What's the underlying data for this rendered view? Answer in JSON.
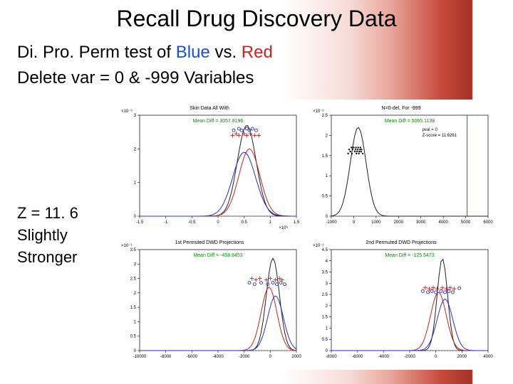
{
  "title": "Recall Drug Discovery Data",
  "subtitle_prefix": "Di. Pro. Perm test of ",
  "subtitle_blue": "Blue",
  "subtitle_vs": " vs. ",
  "subtitle_red": "Red",
  "subtitle2": "Delete var = 0  &  -999 Variables",
  "left_line1": "Z = 11. 6",
  "left_line2": "Slightly",
  "left_line3": "Stronger",
  "charts": {
    "tl": {
      "title": "Skin Data All With",
      "yexp": "×10⁻⁶",
      "xexp": "×10⁶",
      "meanlabel": "Mean Diff = 3057.8196",
      "xlim": [
        -1.5,
        1.5
      ],
      "xticks": [
        "-1.5",
        "-1",
        "-0.5",
        "0",
        "0.5",
        "1",
        "1.5"
      ],
      "ylim": [
        0,
        3
      ],
      "yticks": [
        "0",
        "1",
        "2",
        "3"
      ],
      "kdes": [
        {
          "color": "#202020",
          "mu": 0.55,
          "sigma": 0.18,
          "height": 2.7
        },
        {
          "color": "#cc2020",
          "mu": 0.6,
          "sigma": 0.2,
          "height": 2.0
        },
        {
          "color": "#2030cc",
          "mu": 0.5,
          "sigma": 0.22,
          "height": 1.9
        }
      ],
      "scatter": [
        {
          "color": "#2030cc",
          "marker": "o",
          "pts": [
            [
              0.4,
              2.6
            ],
            [
              0.55,
              2.6
            ],
            [
              0.66,
              2.6
            ],
            [
              0.3,
              2.55
            ],
            [
              0.45,
              2.55
            ],
            [
              0.6,
              2.55
            ],
            [
              0.73,
              2.55
            ]
          ]
        },
        {
          "color": "#cc2020",
          "marker": "+",
          "pts": [
            [
              0.35,
              2.45
            ],
            [
              0.5,
              2.45
            ],
            [
              0.62,
              2.45
            ],
            [
              0.28,
              2.4
            ],
            [
              0.4,
              2.4
            ],
            [
              0.55,
              2.4
            ],
            [
              0.7,
              2.4
            ],
            [
              0.78,
              2.4
            ]
          ]
        }
      ]
    },
    "tr": {
      "title": "N=0-del, For -999",
      "yexp": "×10⁻³",
      "meanlabel": "Mean Diff = 5065.1138",
      "stats": [
        "pval = 0",
        "Z-score = 11.6261"
      ],
      "xlim": [
        -1000,
        6000
      ],
      "xticks": [
        "-1000",
        "0",
        "1000",
        "2000",
        "3000",
        "4000",
        "5000",
        "6000"
      ],
      "ylim": [
        0,
        2.5
      ],
      "yticks": [
        "0",
        "0.5",
        "1",
        "1.5",
        "2",
        "2.5"
      ],
      "kdes": [
        {
          "color": "#202020",
          "mu": 200,
          "sigma": 350,
          "height": 2.2
        }
      ],
      "greenline_x": 5065,
      "scatter": [
        {
          "color": "#101010",
          "marker": "dot",
          "pts": [
            [
              -100,
              1.7
            ],
            [
              0,
              1.7
            ],
            [
              100,
              1.7
            ],
            [
              200,
              1.7
            ],
            [
              300,
              1.7
            ],
            [
              -200,
              1.65
            ],
            [
              -50,
              1.65
            ],
            [
              80,
              1.65
            ],
            [
              180,
              1.65
            ],
            [
              280,
              1.65
            ],
            [
              350,
              1.65
            ],
            [
              -150,
              1.6
            ],
            [
              50,
              1.6
            ],
            [
              150,
              1.6
            ],
            [
              250,
              1.6
            ],
            [
              330,
              1.6
            ],
            [
              -250,
              1.55
            ],
            [
              -80,
              1.55
            ],
            [
              120,
              1.55
            ],
            [
              230,
              1.55
            ],
            [
              400,
              1.55
            ]
          ]
        }
      ]
    },
    "bl": {
      "title": "1st Permuted DWD Projections",
      "yexp": "×10⁻³",
      "meanlabel": "Mean Diff = -458.8453",
      "xlim": [
        -10000,
        2000
      ],
      "xticks": [
        "-10000",
        "-8000",
        "-6000",
        "-4000",
        "-2000",
        "0",
        "2000"
      ],
      "ylim": [
        0,
        3.5
      ],
      "yticks": [
        "0",
        "0.5",
        "1",
        "1.5",
        "2",
        "2.5",
        "3",
        "3.5"
      ],
      "kdes": [
        {
          "color": "#202020",
          "mu": 200,
          "sigma": 500,
          "height": 3.2
        },
        {
          "color": "#cc2020",
          "mu": -100,
          "sigma": 600,
          "height": 2.2
        },
        {
          "color": "#2030cc",
          "mu": 400,
          "sigma": 600,
          "height": 1.9
        }
      ],
      "scatter": [
        {
          "color": "#cc2020",
          "marker": "+",
          "pts": [
            [
              -1400,
              2.5
            ],
            [
              -800,
              2.5
            ],
            [
              0,
              2.5
            ],
            [
              700,
              2.5
            ],
            [
              -1100,
              2.45
            ],
            [
              -300,
              2.45
            ],
            [
              400,
              2.45
            ],
            [
              900,
              2.45
            ]
          ]
        },
        {
          "color": "#2030cc",
          "marker": "o",
          "pts": [
            [
              -1600,
              2.35
            ],
            [
              -700,
              2.35
            ],
            [
              200,
              2.35
            ],
            [
              800,
              2.35
            ],
            [
              -1200,
              2.3
            ],
            [
              -200,
              2.3
            ],
            [
              500,
              2.3
            ],
            [
              1100,
              2.3
            ]
          ]
        }
      ]
    },
    "br": {
      "title": "2nd Permuted DWD Projections",
      "yexp": "×10⁻³",
      "meanlabel": "Mean Diff = -125.5473",
      "xlim": [
        -8000,
        4000
      ],
      "xticks": [
        "-8000",
        "-6000",
        "-4000",
        "-2000",
        "0",
        "2000",
        "4000"
      ],
      "ylim": [
        0,
        4.5
      ],
      "yticks": [
        "0",
        "0.5",
        "1",
        "1.5",
        "2",
        "2.5",
        "3",
        "3.5",
        "4",
        "4.5"
      ],
      "kdes": [
        {
          "color": "#202020",
          "mu": 500,
          "sigma": 400,
          "height": 4.1
        },
        {
          "color": "#cc2020",
          "mu": 200,
          "sigma": 600,
          "height": 2.6
        },
        {
          "color": "#2030cc",
          "mu": 700,
          "sigma": 600,
          "height": 2.3
        }
      ],
      "scatter": [
        {
          "color": "#cc2020",
          "marker": "+",
          "pts": [
            [
              -800,
              2.8
            ],
            [
              -200,
              2.8
            ],
            [
              500,
              2.8
            ],
            [
              1100,
              2.8
            ],
            [
              -500,
              2.75
            ],
            [
              100,
              2.75
            ],
            [
              800,
              2.75
            ],
            [
              1400,
              2.75
            ]
          ]
        },
        {
          "color": "#2030cc",
          "marker": "o",
          "pts": [
            [
              -1000,
              2.65
            ],
            [
              -300,
              2.65
            ],
            [
              400,
              2.65
            ],
            [
              1000,
              2.65
            ],
            [
              -600,
              2.6
            ],
            [
              0,
              2.6
            ],
            [
              700,
              2.6
            ],
            [
              1300,
              2.6
            ],
            [
              1800,
              2.78
            ]
          ]
        }
      ]
    }
  },
  "style": {
    "axis_color": "#000000",
    "grid_dash": "2 2",
    "grid_color": "#a0a0a0",
    "kde_linewidth": 1.0,
    "marker_size": 3
  }
}
